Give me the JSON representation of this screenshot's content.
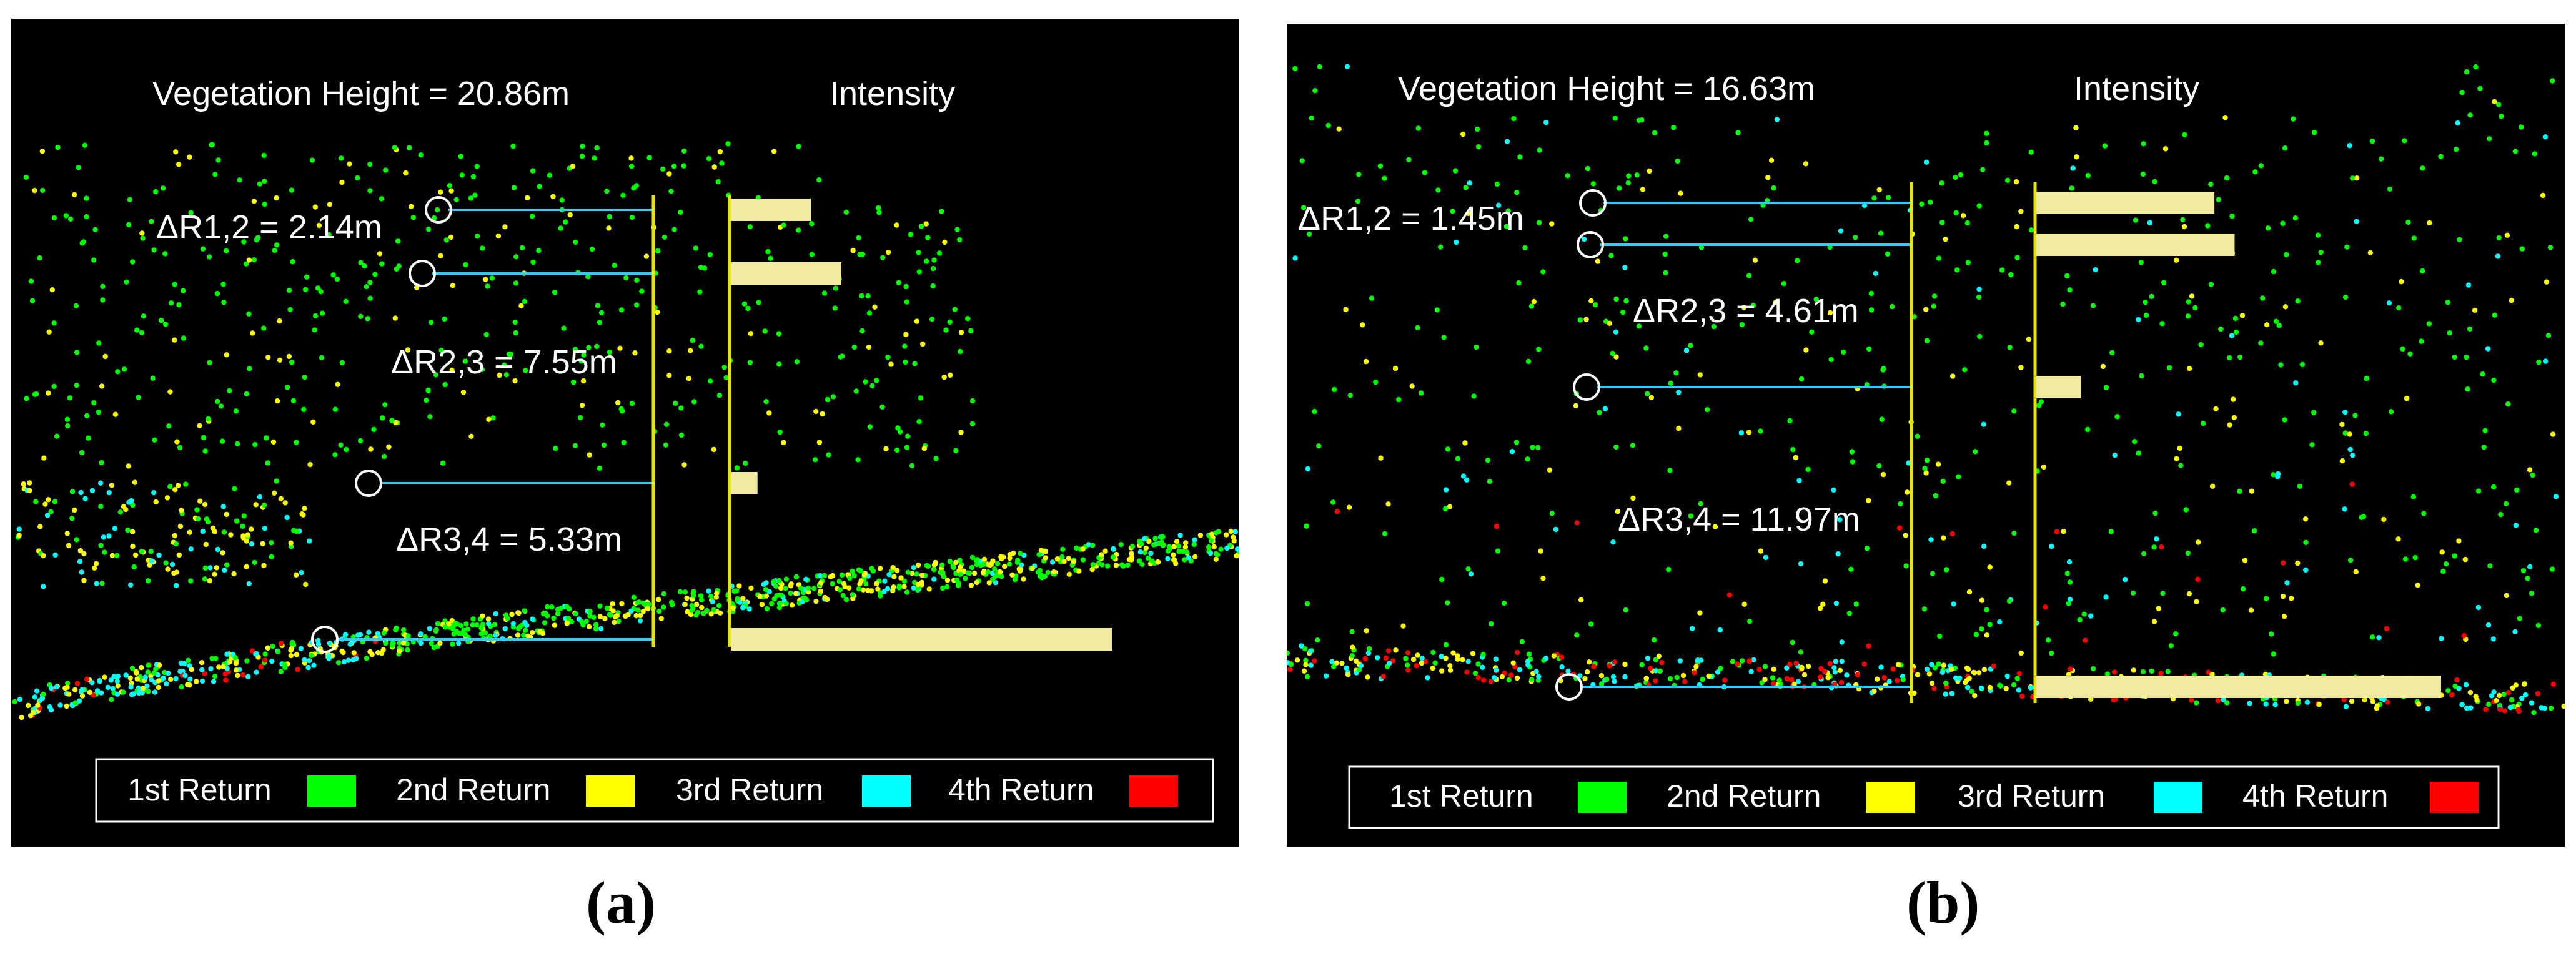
{
  "panels": [
    {
      "caption": "(a)",
      "title": "Vegetation Height = 20.86m",
      "intensity_label": "Intensity",
      "returns": [
        {
          "label": "ΔR1,2 = 2.14m",
          "value_m": 2.14
        },
        {
          "label": "ΔR2,3 = 7.55m",
          "value_m": 7.55
        },
        {
          "label": "ΔR3,4 = 5.33m",
          "value_m": 5.33
        }
      ],
      "intensity_values": [
        0.21,
        0.29,
        0.07,
        1.0
      ],
      "legend": [
        "1st Return",
        "2nd Return",
        "3rd Return",
        "4th Return"
      ]
    },
    {
      "caption": "(b)",
      "title": "Vegetation Height = 16.63m",
      "intensity_label": "Intensity",
      "returns": [
        {
          "label": "ΔR1,2 = 1.45m",
          "value_m": 1.45
        },
        {
          "label": "ΔR2,3 = 4.61m",
          "value_m": 4.61
        },
        {
          "label": "ΔR3,4 = 11.97m",
          "value_m": 11.97
        }
      ],
      "intensity_values": [
        0.44,
        0.49,
        0.11,
        1.0
      ],
      "legend": [
        "1st Return",
        "2nd Return",
        "3rd Return",
        "4th Return"
      ]
    }
  ],
  "colors": {
    "first_return": "#00ff00",
    "second_return": "#ffff00",
    "third_return": "#00ffff",
    "fourth_return": "#ff0000",
    "marker_line": "#33ccff",
    "axis": "#e6e600",
    "intensity_bar": "#f0eba0",
    "text": "#ffffff"
  }
}
